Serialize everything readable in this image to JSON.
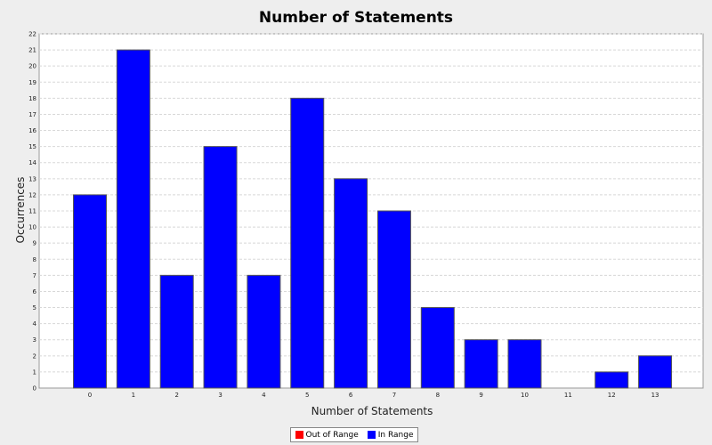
{
  "chart_data": {
    "type": "bar",
    "title": "Number of Statements",
    "xlabel": "Number of Statements",
    "ylabel": "Occurrences",
    "categories": [
      "0",
      "1",
      "2",
      "3",
      "4",
      "5",
      "6",
      "7",
      "8",
      "9",
      "10",
      "11",
      "12",
      "13"
    ],
    "series": [
      {
        "name": "In Range",
        "values": [
          12,
          21,
          7,
          15,
          7,
          18,
          13,
          11,
          5,
          3,
          3,
          0,
          1,
          2
        ]
      }
    ],
    "ylim": [
      0,
      22
    ],
    "yticks": [
      "0",
      "1",
      "2",
      "3",
      "4",
      "5",
      "6",
      "7",
      "8",
      "9",
      "10",
      "11",
      "12",
      "13",
      "14",
      "15",
      "16",
      "17",
      "18",
      "19",
      "20",
      "21",
      "22"
    ],
    "grid": true,
    "legend_position": "bottom",
    "legend": [
      {
        "label": "Out of Range",
        "color": "#ff0000"
      },
      {
        "label": "In Range",
        "color": "#0000ff"
      }
    ],
    "colors": {
      "bar": "#0000ff",
      "background": "#eeeeee",
      "plot_background": "#ffffff",
      "grid": "#d8d8d8"
    }
  }
}
